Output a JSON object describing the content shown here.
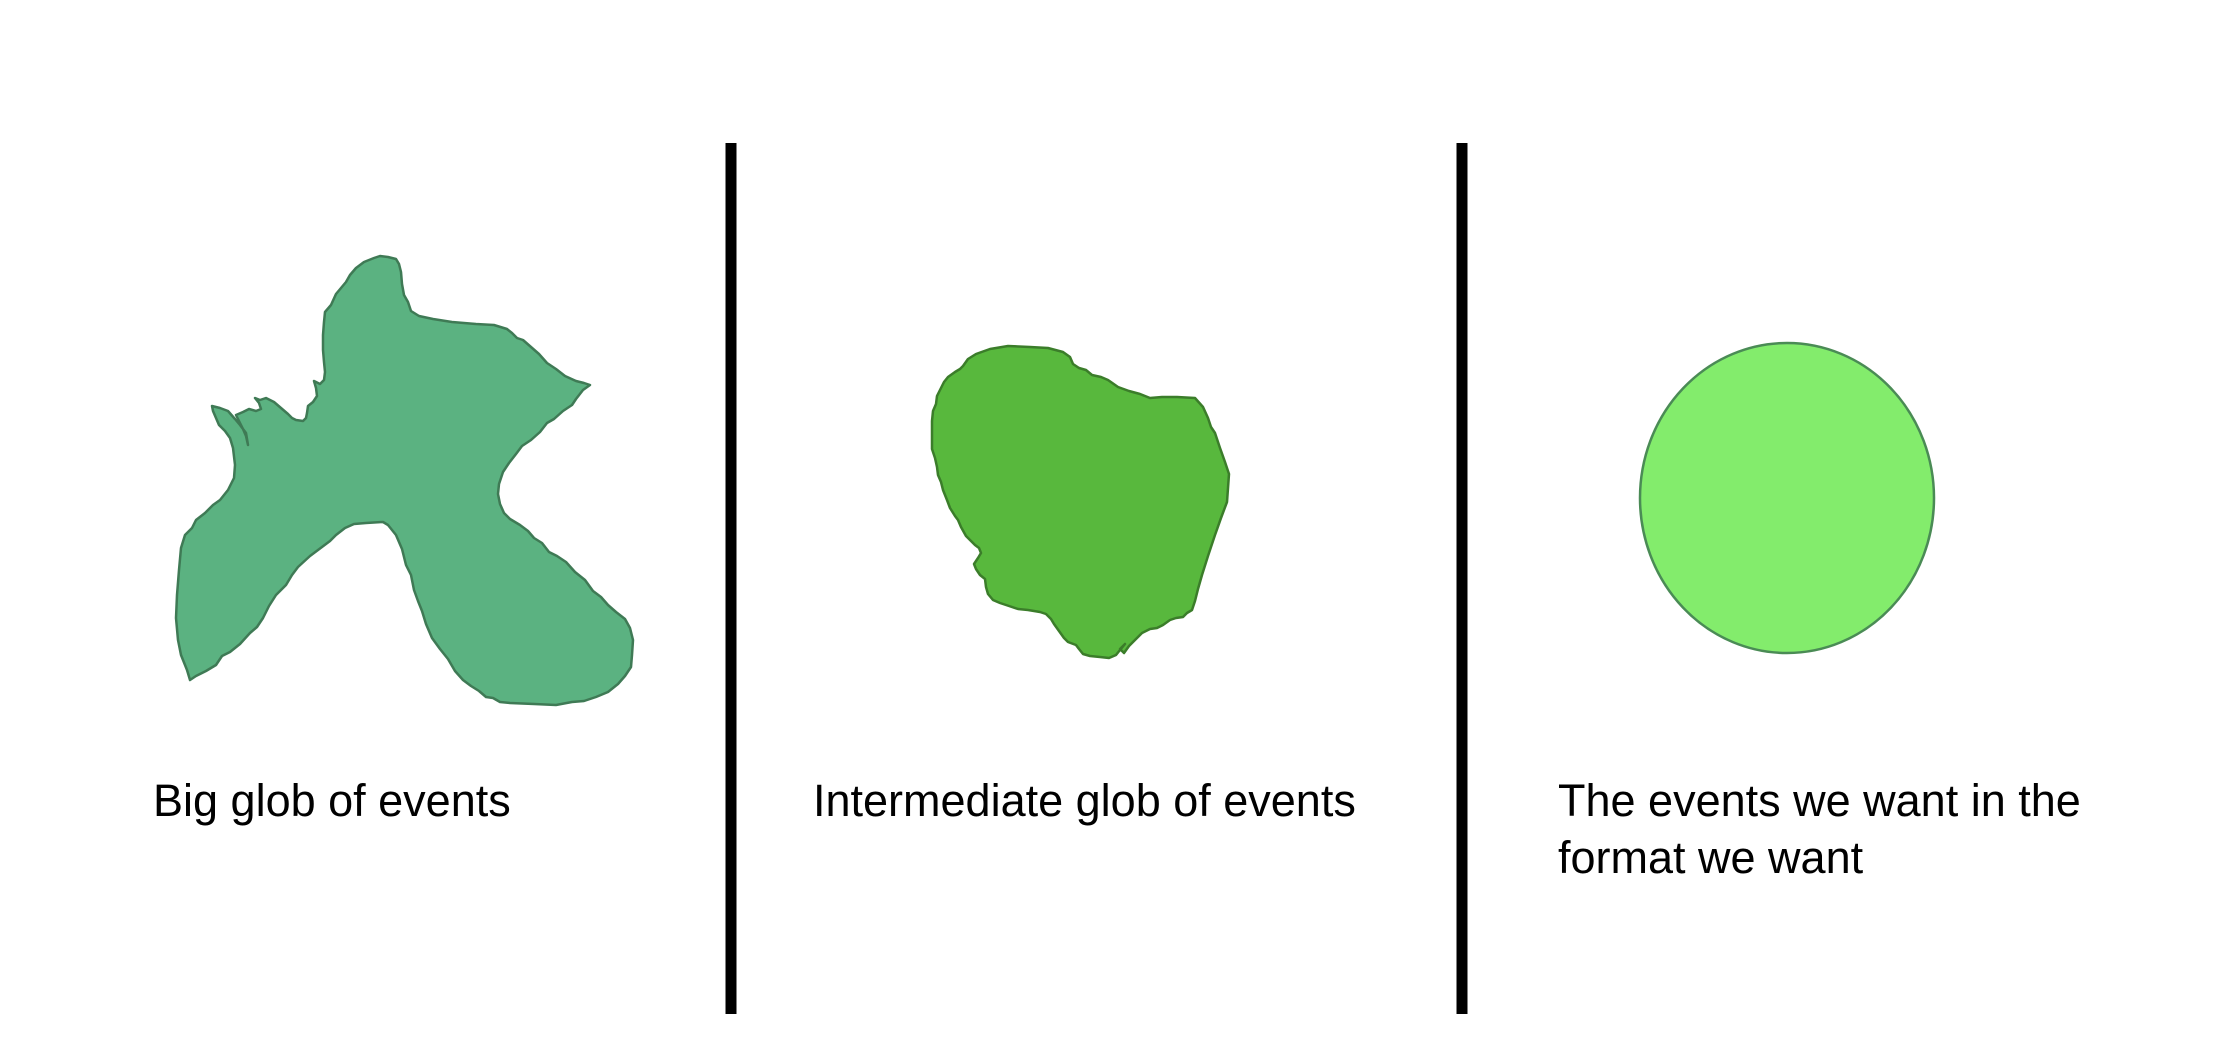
{
  "panels": [
    {
      "caption": "Big glob of events",
      "shape_icon": "irregular-blob-icon",
      "fill_color": "#5bb281",
      "stroke_color": "#3f7a55"
    },
    {
      "caption": "Intermediate glob of events",
      "shape_icon": "rounded-blob-icon",
      "fill_color": "#58b83d",
      "stroke_color": "#3b7d2a"
    },
    {
      "caption": "The events we want in the format we want",
      "shape_icon": "circle-icon",
      "fill_color": "#83ec6c",
      "stroke_color": "#4a8b55"
    }
  ],
  "divider_color": "#000000"
}
